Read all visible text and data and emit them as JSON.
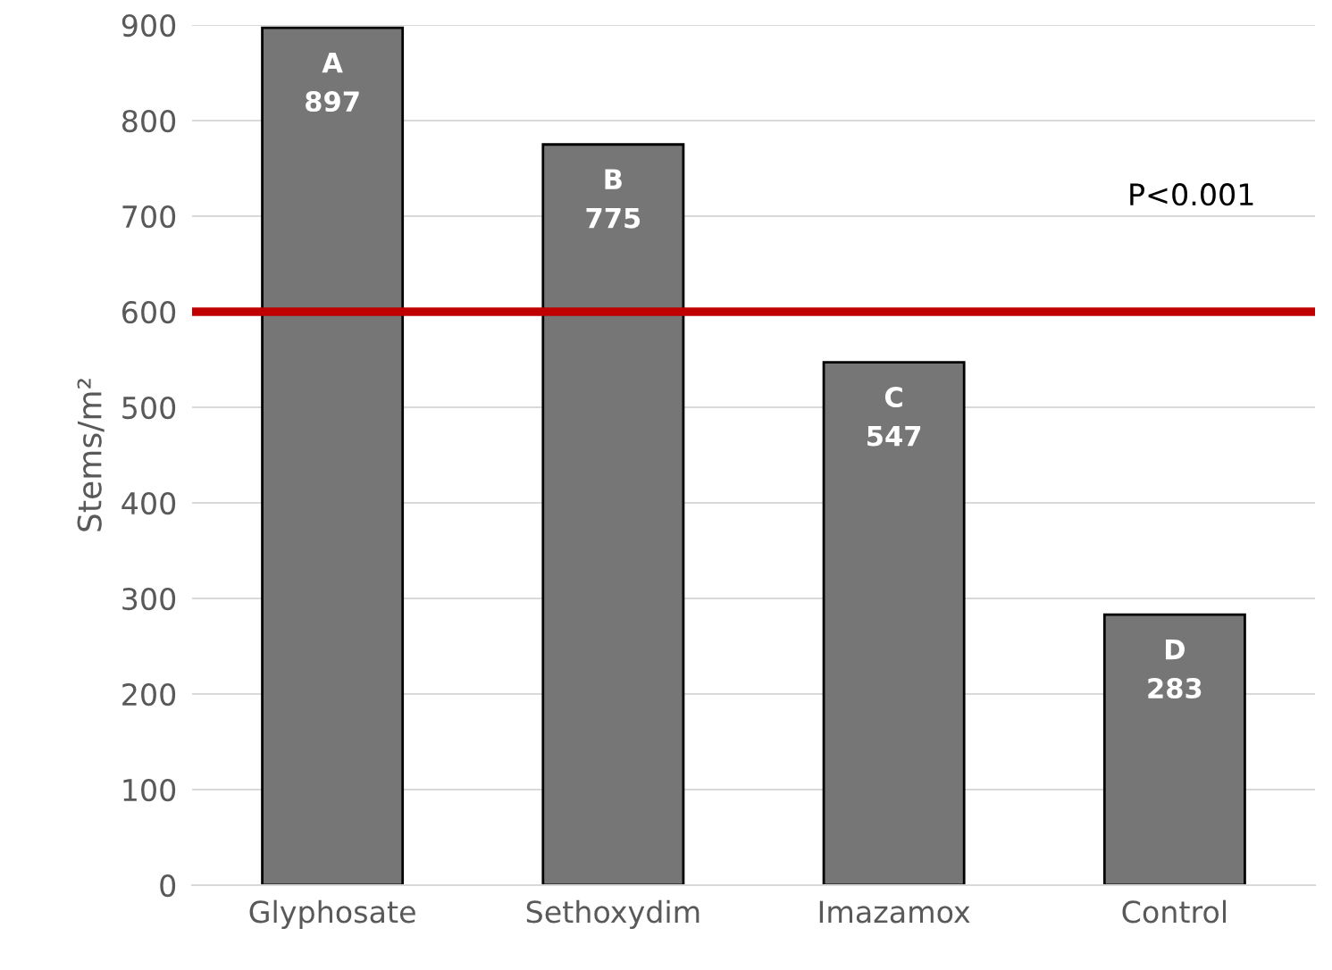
{
  "chart_data": {
    "type": "bar",
    "ylabel": "Stems/m²",
    "categories": [
      "Glyphosate",
      "Sethoxydim",
      "Imazamox",
      "Control"
    ],
    "values": [
      897,
      775,
      547,
      283
    ],
    "value_labels": [
      "A\n897",
      "B\n775",
      "C\n547",
      "D\n283"
    ],
    "color": "#767676",
    "ylim": [
      0,
      900
    ],
    "yticks": [
      0,
      100,
      200,
      300,
      400,
      500,
      600,
      700,
      800,
      900
    ],
    "grid": "y",
    "ref_lines": [
      {
        "axis": "y",
        "value": 600,
        "color": "#c00000"
      }
    ],
    "annotations": [
      "P<0.001"
    ]
  }
}
